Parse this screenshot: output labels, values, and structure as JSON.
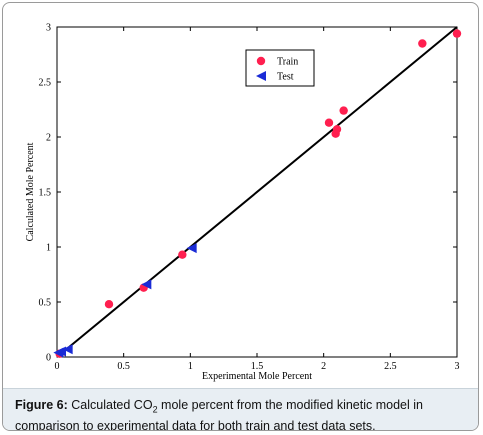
{
  "chart_data": {
    "type": "scatter",
    "xlabel": "Experimental Mole Percent",
    "ylabel": "Calculated Mole Percent",
    "xlim": [
      0,
      3
    ],
    "ylim": [
      0,
      3
    ],
    "x_ticks": [
      "0",
      "0.5",
      "1",
      "1.5",
      "2",
      "2.5",
      "3"
    ],
    "y_ticks": [
      "0",
      "0.5",
      "1",
      "1.5",
      "2",
      "2.5",
      "3"
    ],
    "grid": false,
    "legend_position": "top-center",
    "reference_line": {
      "x": [
        0,
        3
      ],
      "y": [
        0,
        3
      ],
      "color": "#000000"
    },
    "series": [
      {
        "name": "Train",
        "marker": "circle",
        "color": "#ff1f4f",
        "points": [
          {
            "x": 0.02,
            "y": 0.03
          },
          {
            "x": 0.39,
            "y": 0.48
          },
          {
            "x": 0.65,
            "y": 0.63
          },
          {
            "x": 0.94,
            "y": 0.93
          },
          {
            "x": 2.04,
            "y": 2.13
          },
          {
            "x": 2.09,
            "y": 2.03
          },
          {
            "x": 2.1,
            "y": 2.07
          },
          {
            "x": 2.15,
            "y": 2.24
          },
          {
            "x": 2.74,
            "y": 2.85
          },
          {
            "x": 3.0,
            "y": 2.94
          }
        ]
      },
      {
        "name": "Test",
        "marker": "triangle-left",
        "color": "#1a2bd6",
        "points": [
          {
            "x": 0.01,
            "y": 0.04
          },
          {
            "x": 0.03,
            "y": 0.05
          },
          {
            "x": 0.08,
            "y": 0.07
          },
          {
            "x": 0.67,
            "y": 0.66
          },
          {
            "x": 1.01,
            "y": 0.99
          }
        ]
      }
    ]
  },
  "caption": {
    "label": "Figure 6:",
    "text_before_sub": " Calculated CO",
    "subscript": "2",
    "text_after_sub": " mole percent from the modified kinetic model in comparison to experimental data for both train and test data sets."
  }
}
